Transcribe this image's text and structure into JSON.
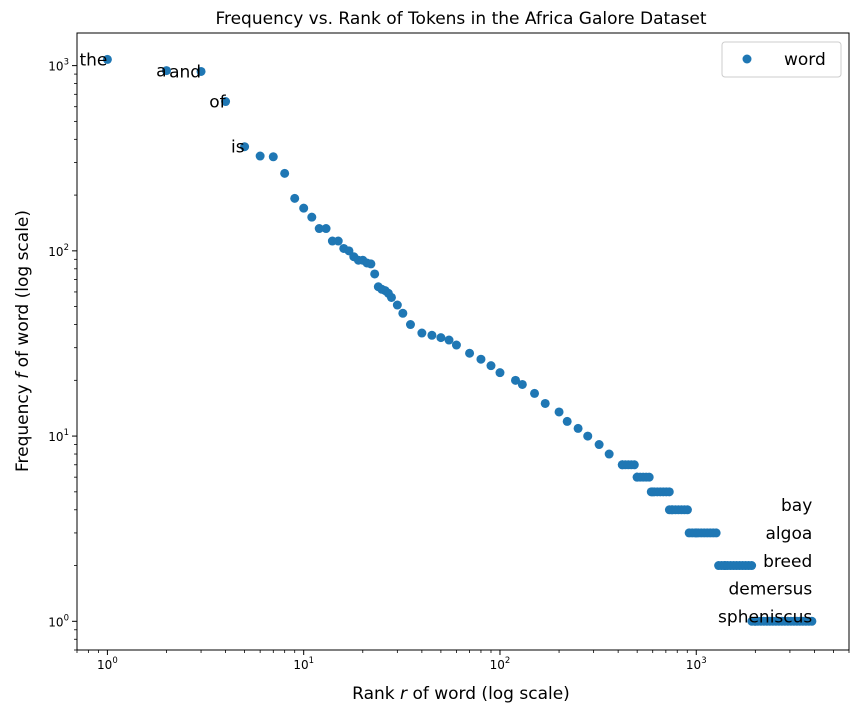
{
  "chart_data": {
    "type": "scatter",
    "title": "Frequency vs. Rank of Tokens in the Africa Galore Dataset",
    "xlabel_pre": "Rank ",
    "xlabel_var": "r",
    "xlabel_post": " of word (log scale)",
    "ylabel_pre": "Frequency ",
    "ylabel_var": "f",
    "ylabel_post": " of word (log scale)",
    "x_scale": "log",
    "y_scale": "log",
    "xlim": [
      0.7,
      6000
    ],
    "ylim": [
      0.7,
      1500
    ],
    "grid": false,
    "legend_position": "top-right",
    "marker_color": "#1f77b4",
    "x_tick_labels": [
      {
        "base": "10",
        "exp": "0",
        "value": 1
      },
      {
        "base": "10",
        "exp": "1",
        "value": 10
      },
      {
        "base": "10",
        "exp": "2",
        "value": 100
      },
      {
        "base": "10",
        "exp": "3",
        "value": 1000
      }
    ],
    "y_tick_labels": [
      {
        "base": "10",
        "exp": "0",
        "value": 1
      },
      {
        "base": "10",
        "exp": "1",
        "value": 10
      },
      {
        "base": "10",
        "exp": "2",
        "value": 100
      },
      {
        "base": "10",
        "exp": "3",
        "value": 1000
      }
    ],
    "series": [
      {
        "name": "word",
        "points": [
          [
            1,
            1080
          ],
          [
            2,
            940
          ],
          [
            3,
            930
          ],
          [
            4,
            640
          ],
          [
            5,
            365
          ],
          [
            6,
            325
          ],
          [
            7,
            322
          ],
          [
            8,
            262
          ],
          [
            9,
            192
          ],
          [
            10,
            170
          ],
          [
            11,
            152
          ],
          [
            12,
            132
          ],
          [
            13,
            132
          ],
          [
            14,
            113
          ],
          [
            15,
            113
          ],
          [
            16,
            103
          ],
          [
            17,
            100
          ],
          [
            18,
            93
          ],
          [
            19,
            89
          ],
          [
            20,
            89
          ],
          [
            21,
            86
          ],
          [
            22,
            85
          ],
          [
            23,
            75
          ],
          [
            24,
            64
          ],
          [
            25,
            62
          ],
          [
            26,
            61
          ],
          [
            27,
            59
          ],
          [
            28,
            56
          ],
          [
            30,
            51
          ],
          [
            32,
            46
          ],
          [
            35,
            40
          ],
          [
            40,
            36
          ],
          [
            45,
            35
          ],
          [
            50,
            34
          ],
          [
            55,
            33
          ],
          [
            60,
            31
          ],
          [
            70,
            28
          ],
          [
            80,
            26
          ],
          [
            90,
            24
          ],
          [
            100,
            22
          ],
          [
            120,
            20
          ],
          [
            130,
            19
          ],
          [
            150,
            17
          ],
          [
            170,
            15
          ],
          [
            200,
            13.5
          ],
          [
            220,
            12
          ],
          [
            250,
            11
          ],
          [
            280,
            10
          ],
          [
            320,
            9
          ],
          [
            360,
            8
          ],
          [
            420,
            7
          ],
          [
            500,
            6
          ],
          [
            600,
            5
          ],
          [
            750,
            4
          ],
          [
            1000,
            3
          ],
          [
            1400,
            2
          ],
          [
            2000,
            1
          ]
        ],
        "plateaus": [
          {
            "from": 420,
            "to": 500,
            "value": 7
          },
          {
            "from": 500,
            "to": 590,
            "value": 6
          },
          {
            "from": 590,
            "to": 730,
            "value": 5
          },
          {
            "from": 730,
            "to": 920,
            "value": 4
          },
          {
            "from": 920,
            "to": 1300,
            "value": 3
          },
          {
            "from": 1300,
            "to": 1920,
            "value": 2
          },
          {
            "from": 1920,
            "to": 3950,
            "value": 1
          }
        ]
      }
    ],
    "annotations": [
      {
        "text": "the",
        "x": 1,
        "y": 1080,
        "anchor": "end"
      },
      {
        "text": "a",
        "x": 2,
        "y": 940,
        "anchor": "end"
      },
      {
        "text": "and",
        "x": 3,
        "y": 930,
        "anchor": "end"
      },
      {
        "text": "of",
        "x": 4,
        "y": 640,
        "anchor": "end"
      },
      {
        "text": "is",
        "x": 5,
        "y": 365,
        "anchor": "end"
      },
      {
        "text": "bay",
        "x": 3900,
        "y": 4.25,
        "anchor": "end"
      },
      {
        "text": "algoa",
        "x": 3900,
        "y": 3.0,
        "anchor": "end"
      },
      {
        "text": "breed",
        "x": 3900,
        "y": 2.12,
        "anchor": "end"
      },
      {
        "text": "demersus",
        "x": 3900,
        "y": 1.5,
        "anchor": "end"
      },
      {
        "text": "spheniscus",
        "x": 3900,
        "y": 1.06,
        "anchor": "end"
      }
    ]
  }
}
